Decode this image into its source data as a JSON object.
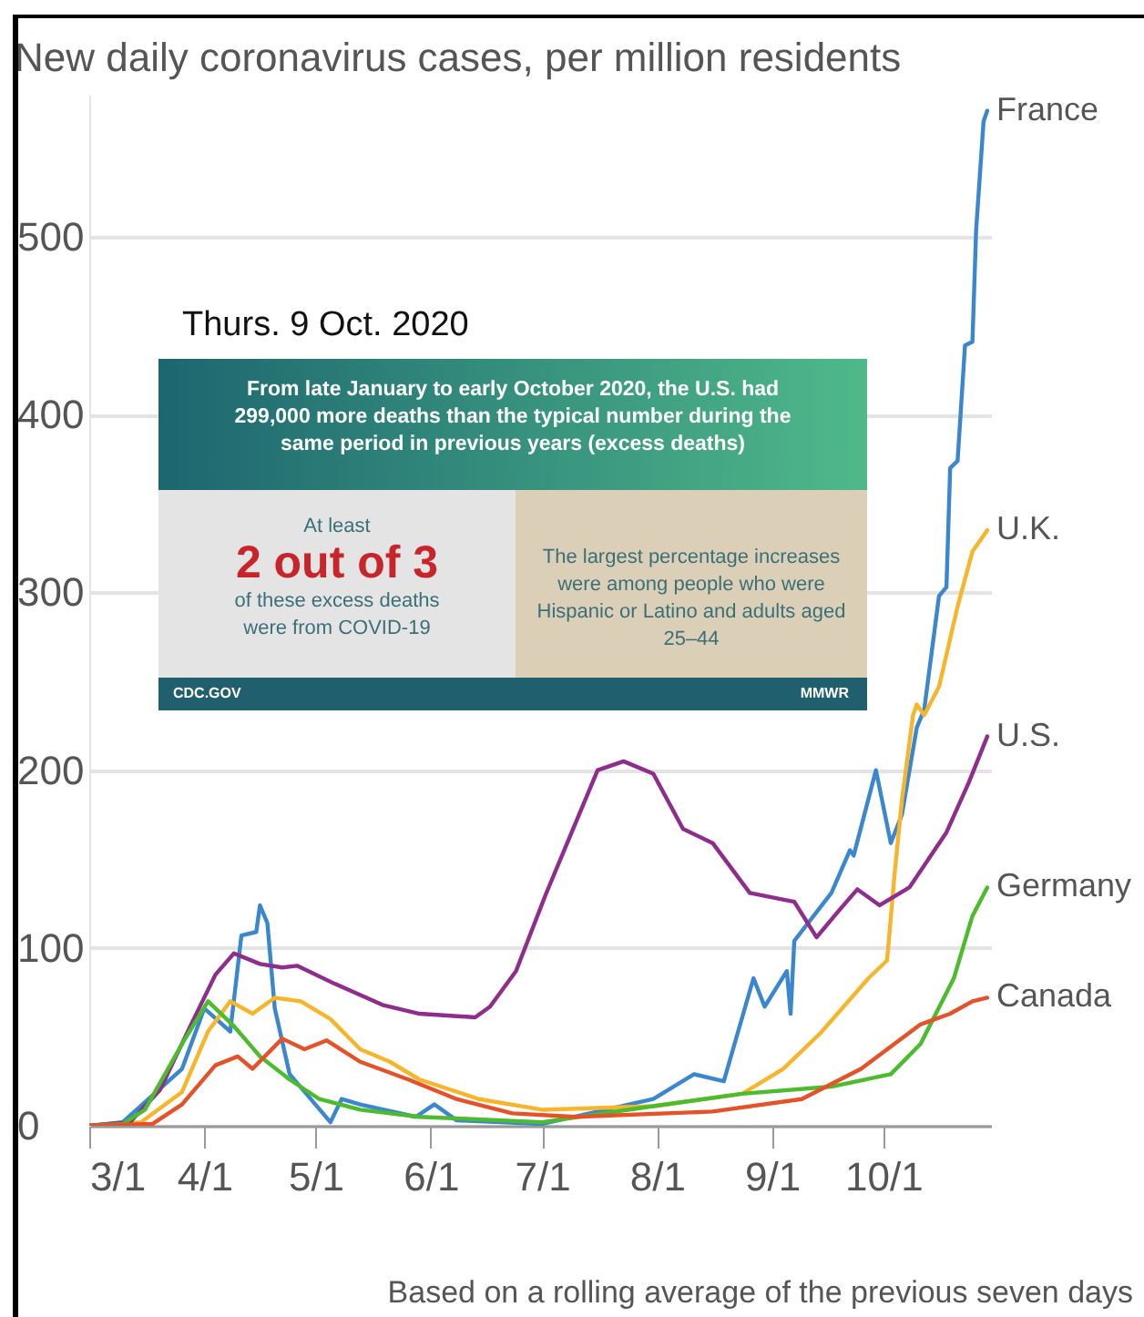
{
  "chart_data": {
    "type": "line",
    "title": "New daily coronavirus cases, per million residents",
    "xlim": [
      "2020-03-01",
      "2020-10-30"
    ],
    "xticks": [
      {
        "value": "2020-03-01",
        "label": "3/1"
      },
      {
        "value": "2020-04-01",
        "label": "4/1"
      },
      {
        "value": "2020-05-01",
        "label": "5/1"
      },
      {
        "value": "2020-06-01",
        "label": "6/1"
      },
      {
        "value": "2020-07-01",
        "label": "7/1"
      },
      {
        "value": "2020-08-01",
        "label": "8/1"
      },
      {
        "value": "2020-09-01",
        "label": "9/1"
      },
      {
        "value": "2020-10-01",
        "label": "10/1"
      }
    ],
    "ylim": [
      0,
      580
    ],
    "yticks": [
      0,
      100,
      200,
      300,
      400,
      500
    ],
    "grid": "y",
    "series": [
      {
        "name": "France",
        "color": "#3a87d0",
        "x": [
          "2020-03-01",
          "2020-03-10",
          "2020-03-26",
          "2020-04-01",
          "2020-04-08",
          "2020-04-11",
          "2020-04-15",
          "2020-04-16",
          "2020-04-18",
          "2020-04-20",
          "2020-04-24",
          "2020-05-05",
          "2020-05-08",
          "2020-05-13",
          "2020-05-28",
          "2020-06-02",
          "2020-06-08",
          "2020-07-01",
          "2020-07-31",
          "2020-08-11",
          "2020-08-19",
          "2020-08-27",
          "2020-08-30",
          "2020-09-05",
          "2020-09-06",
          "2020-09-07",
          "2020-09-17",
          "2020-09-22",
          "2020-09-23",
          "2020-09-29",
          "2020-10-03",
          "2020-10-06",
          "2020-10-10",
          "2020-10-12",
          "2020-10-16",
          "2020-10-18",
          "2020-10-19",
          "2020-10-21",
          "2020-10-23",
          "2020-10-25",
          "2020-10-26",
          "2020-10-28",
          "2020-10-29"
        ],
        "values": [
          0,
          2,
          32,
          66,
          53,
          107,
          109,
          124,
          114,
          66,
          29,
          2,
          15,
          12,
          5,
          12,
          3,
          1,
          15,
          29,
          25,
          83,
          67,
          87,
          63,
          104,
          131,
          155,
          152,
          200,
          159,
          175,
          224,
          234,
          298,
          303,
          370,
          374,
          439,
          441,
          504,
          565,
          571
        ]
      },
      {
        "name": "U.K.",
        "color": "#f7b52c",
        "x": [
          "2020-03-01",
          "2020-03-15",
          "2020-03-26",
          "2020-04-02",
          "2020-04-08",
          "2020-04-14",
          "2020-04-20",
          "2020-04-27",
          "2020-05-05",
          "2020-05-13",
          "2020-05-21",
          "2020-05-29",
          "2020-06-14",
          "2020-07-01",
          "2020-07-31",
          "2020-08-24",
          "2020-09-04",
          "2020-09-14",
          "2020-09-27",
          "2020-10-02",
          "2020-10-04",
          "2020-10-06",
          "2020-10-09",
          "2020-10-10",
          "2020-10-12",
          "2020-10-16",
          "2020-10-21",
          "2020-10-25",
          "2020-10-29"
        ],
        "values": [
          0,
          2,
          19,
          53,
          70,
          63,
          72,
          70,
          60,
          43,
          36,
          26,
          15,
          9,
          11,
          18,
          32,
          52,
          83,
          93,
          141,
          183,
          231,
          237,
          231,
          247,
          292,
          323,
          335
        ]
      },
      {
        "name": "U.S.",
        "color": "#8e2d8b",
        "x": [
          "2020-03-01",
          "2020-03-12",
          "2020-03-20",
          "2020-03-28",
          "2020-04-04",
          "2020-04-09",
          "2020-04-16",
          "2020-04-22",
          "2020-04-26",
          "2020-05-06",
          "2020-05-19",
          "2020-05-29",
          "2020-06-13",
          "2020-06-17",
          "2020-06-24",
          "2020-07-02",
          "2020-07-09",
          "2020-07-16",
          "2020-07-23",
          "2020-07-31",
          "2020-08-08",
          "2020-08-16",
          "2020-08-26",
          "2020-09-07",
          "2020-09-13",
          "2020-09-19",
          "2020-09-24",
          "2020-09-30",
          "2020-10-08",
          "2020-10-18",
          "2020-10-24",
          "2020-10-29"
        ],
        "values": [
          0,
          2,
          20,
          55,
          85,
          97,
          91,
          89,
          90,
          80,
          68,
          63,
          61,
          67,
          87,
          130,
          165,
          200,
          205,
          198,
          167,
          159,
          131,
          126,
          106,
          121,
          133,
          124,
          134,
          165,
          193,
          219
        ]
      },
      {
        "name": "Germany",
        "color": "#4cbb2e",
        "x": [
          "2020-03-01",
          "2020-03-10",
          "2020-03-16",
          "2020-03-26",
          "2020-04-02",
          "2020-04-09",
          "2020-04-16",
          "2020-04-24",
          "2020-05-02",
          "2020-05-13",
          "2020-05-29",
          "2020-07-01",
          "2020-07-31",
          "2020-08-24",
          "2020-09-17",
          "2020-10-03",
          "2020-10-11",
          "2020-10-20",
          "2020-10-22",
          "2020-10-25",
          "2020-10-29"
        ],
        "values": [
          0,
          1,
          9,
          46,
          70,
          56,
          39,
          26,
          15,
          9,
          5,
          2,
          11,
          18,
          22,
          29,
          46,
          83,
          97,
          118,
          134
        ]
      },
      {
        "name": "Canada",
        "color": "#e5522a",
        "x": [
          "2020-03-01",
          "2020-03-18",
          "2020-03-26",
          "2020-04-04",
          "2020-04-10",
          "2020-04-14",
          "2020-04-22",
          "2020-04-28",
          "2020-05-04",
          "2020-05-13",
          "2020-05-26",
          "2020-06-08",
          "2020-06-23",
          "2020-07-10",
          "2020-08-16",
          "2020-09-09",
          "2020-09-25",
          "2020-10-11",
          "2020-10-19",
          "2020-10-25",
          "2020-10-29"
        ],
        "values": [
          0,
          1,
          12,
          34,
          39,
          32,
          49,
          43,
          48,
          36,
          26,
          15,
          7,
          5,
          8,
          15,
          32,
          57,
          63,
          70,
          72
        ]
      }
    ],
    "annotations": [
      "Thurs. 9 Oct. 2020",
      "From late January to early October 2020, the U.S. had 299,000 more deaths than the typical number during the same period in previous years (excess deaths)",
      "At least",
      "2 out of 3",
      "of these excess deaths were from COVID-19",
      "The largest percentage increases were among people who were Hispanic or Latino and adults aged 25–44",
      "CDC.GOV",
      "MMWR",
      "Based on a rolling average of the previous seven days"
    ]
  }
}
